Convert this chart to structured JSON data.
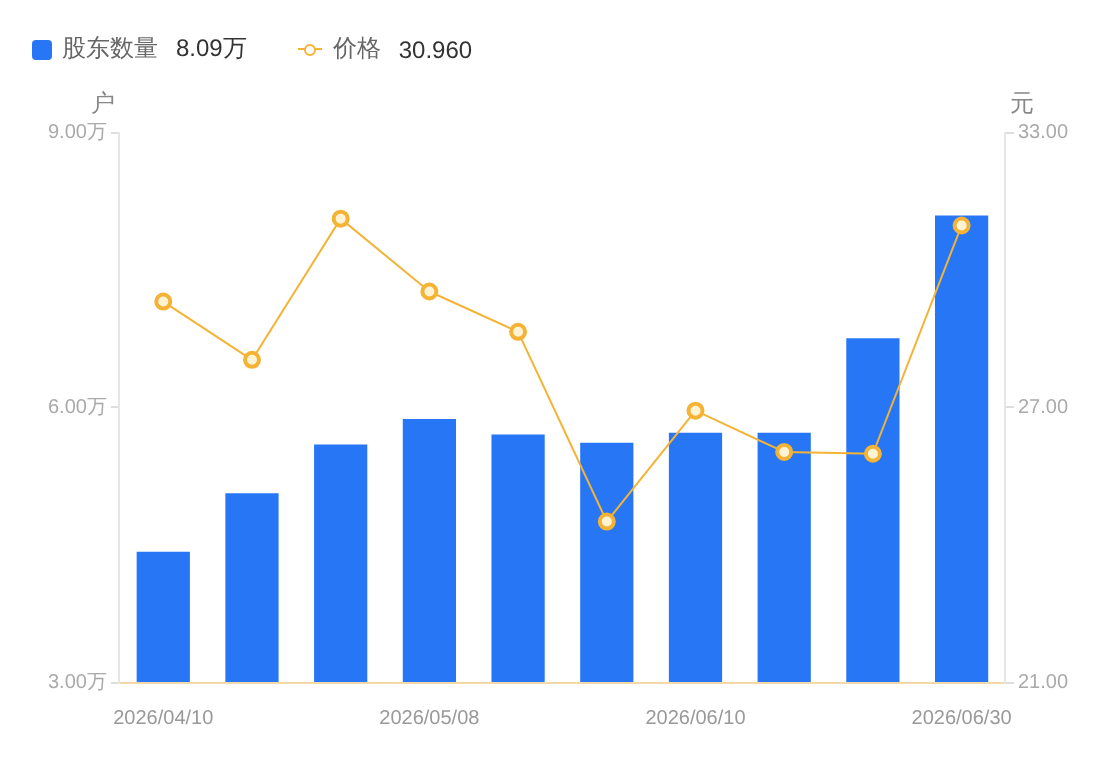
{
  "chart_data": {
    "type": "bar",
    "categories": [
      "2026/04/10",
      null,
      null,
      "2026/05/08",
      null,
      null,
      "2026/06/10",
      null,
      null,
      "2026/06/30"
    ],
    "series": [
      {
        "name": "股东数量",
        "type": "bar",
        "color": "#2776f6",
        "values": [
          4.42,
          5.06,
          5.59,
          5.87,
          5.7,
          5.61,
          5.72,
          5.72,
          6.75,
          8.09
        ]
      },
      {
        "name": "价格",
        "type": "line",
        "axis": "y2",
        "color": "#f5b335",
        "values": [
          29.3,
          28.03,
          31.11,
          29.52,
          28.64,
          24.5,
          26.92,
          26.02,
          25.98,
          30.96
        ]
      }
    ],
    "ylabel": "户",
    "y2label": "元",
    "ylim": [
      3,
      9
    ],
    "yticks": [
      {
        "value": 3,
        "label": "3.00万"
      },
      {
        "value": 6,
        "label": "6.00万"
      },
      {
        "value": 9,
        "label": "9.00万"
      }
    ],
    "y2lim": [
      21,
      33
    ],
    "y2ticks": [
      {
        "value": 21,
        "label": "21.00"
      },
      {
        "value": 27,
        "label": "27.00"
      },
      {
        "value": 33,
        "label": "33.00"
      }
    ],
    "annotations": [
      "8.09万",
      "30.960"
    ],
    "legend": "top left",
    "marker": "circle",
    "grid": false
  }
}
